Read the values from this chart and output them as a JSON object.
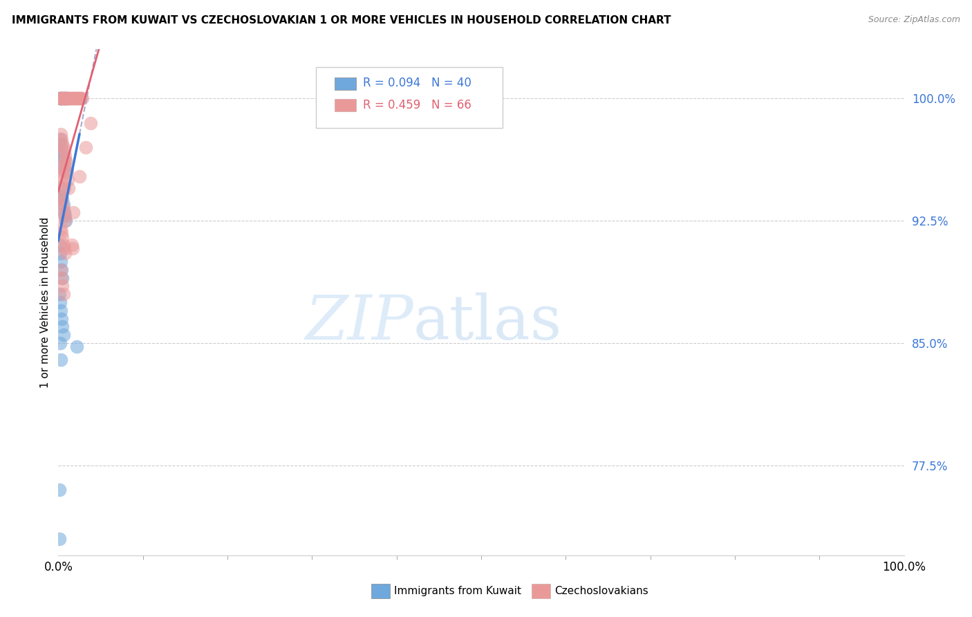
{
  "title": "IMMIGRANTS FROM KUWAIT VS CZECHOSLOVAKIAN 1 OR MORE VEHICLES IN HOUSEHOLD CORRELATION CHART",
  "source": "Source: ZipAtlas.com",
  "ylabel": "1 or more Vehicles in Household",
  "legend1_label": "Immigrants from Kuwait",
  "legend2_label": "Czechoslovakians",
  "blue_R": 0.094,
  "blue_N": 40,
  "pink_R": 0.459,
  "pink_N": 66,
  "blue_color": "#6fa8dc",
  "pink_color": "#ea9999",
  "blue_line_color": "#3c78d8",
  "pink_line_color": "#e06070",
  "dashed_line_color": "#aaaacc",
  "xlim": [
    0,
    1.0
  ],
  "ylim": [
    0.72,
    1.03
  ],
  "yticks": [
    1.0,
    0.925,
    0.85,
    0.775
  ],
  "ytick_labels": [
    "100.0%",
    "92.5%",
    "85.0%",
    "77.5%"
  ],
  "blue_x": [
    0.001,
    0.002,
    0.003,
    0.004,
    0.005,
    0.006,
    0.007,
    0.008,
    0.009,
    0.01,
    0.002,
    0.003,
    0.004,
    0.005,
    0.006,
    0.007,
    0.008,
    0.003,
    0.004,
    0.005,
    0.006,
    0.007,
    0.008,
    0.009,
    0.001,
    0.002,
    0.003,
    0.004,
    0.005,
    0.001,
    0.002,
    0.003,
    0.004,
    0.005,
    0.006,
    0.002,
    0.003,
    0.022,
    0.001,
    0.001
  ],
  "blue_y": [
    1.0,
    1.0,
    1.0,
    1.0,
    1.0,
    1.0,
    1.0,
    1.0,
    1.0,
    1.0,
    0.975,
    0.972,
    0.968,
    0.965,
    0.962,
    0.958,
    0.955,
    0.945,
    0.94,
    0.938,
    0.935,
    0.93,
    0.928,
    0.925,
    0.91,
    0.905,
    0.9,
    0.895,
    0.89,
    0.88,
    0.875,
    0.87,
    0.865,
    0.86,
    0.855,
    0.85,
    0.84,
    0.848,
    0.76,
    0.73
  ],
  "pink_x": [
    0.002,
    0.003,
    0.004,
    0.005,
    0.006,
    0.007,
    0.008,
    0.009,
    0.01,
    0.011,
    0.012,
    0.013,
    0.014,
    0.015,
    0.016,
    0.017,
    0.018,
    0.019,
    0.02,
    0.021,
    0.022,
    0.023,
    0.024,
    0.025,
    0.026,
    0.027,
    0.028,
    0.003,
    0.004,
    0.005,
    0.006,
    0.007,
    0.008,
    0.009,
    0.003,
    0.004,
    0.005,
    0.006,
    0.007,
    0.003,
    0.004,
    0.005,
    0.006,
    0.007,
    0.008,
    0.008,
    0.009,
    0.01,
    0.011,
    0.012,
    0.003,
    0.004,
    0.005,
    0.006,
    0.007,
    0.008,
    0.018,
    0.025,
    0.032,
    0.038,
    0.003,
    0.004,
    0.005,
    0.006,
    0.016,
    0.017
  ],
  "pink_y": [
    1.0,
    1.0,
    1.0,
    1.0,
    1.0,
    1.0,
    1.0,
    1.0,
    1.0,
    1.0,
    1.0,
    1.0,
    1.0,
    1.0,
    1.0,
    1.0,
    1.0,
    1.0,
    1.0,
    1.0,
    1.0,
    1.0,
    1.0,
    1.0,
    1.0,
    1.0,
    1.0,
    0.978,
    0.975,
    0.972,
    0.97,
    0.968,
    0.965,
    0.962,
    0.958,
    0.955,
    0.952,
    0.948,
    0.945,
    0.94,
    0.938,
    0.935,
    0.932,
    0.928,
    0.925,
    0.962,
    0.958,
    0.955,
    0.95,
    0.945,
    0.92,
    0.918,
    0.915,
    0.91,
    0.908,
    0.905,
    0.93,
    0.952,
    0.97,
    0.985,
    0.895,
    0.89,
    0.885,
    0.88,
    0.91,
    0.908
  ]
}
